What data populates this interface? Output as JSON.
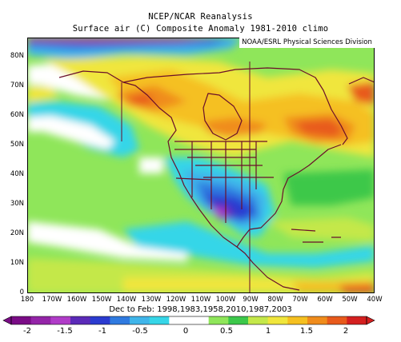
{
  "titles": {
    "line1": "NCEP/NCAR Reanalysis",
    "line2": "Surface air (C) Composite Anomaly 1981-2010 climo",
    "credit": "NOAA/ESRL Physical Sciences Division",
    "season": "Dec to Feb: 1998,1983,1958,2010,1987,2003"
  },
  "map": {
    "lat_ticks": [
      "0",
      "10N",
      "20N",
      "30N",
      "40N",
      "50N",
      "60N",
      "70N",
      "80N"
    ],
    "lon_ticks": [
      "180",
      "170W",
      "160W",
      "150W",
      "140W",
      "130W",
      "120W",
      "110W",
      "100W",
      "90W",
      "80W",
      "70W",
      "60W",
      "50W",
      "40W"
    ],
    "extent": {
      "lon_min": -180,
      "lon_max": -40,
      "lat_min": 0,
      "lat_max": 87.5
    }
  },
  "colorbar": {
    "labels": [
      "-2",
      "-1.5",
      "-1",
      "-0.5",
      "0",
      "0.5",
      "1",
      "1.5",
      "2"
    ],
    "colors": [
      "#7a0c86",
      "#9424a8",
      "#b03cc8",
      "#5b2ab8",
      "#2b3bd0",
      "#2f7ae0",
      "#3fb5ea",
      "#36d6e8",
      "#ffffff",
      "#ffffff",
      "#8fe65a",
      "#3cc84a",
      "#c4e84a",
      "#f0e63c",
      "#f5c020",
      "#f08c1c",
      "#e85a1c",
      "#d42020"
    ]
  }
}
